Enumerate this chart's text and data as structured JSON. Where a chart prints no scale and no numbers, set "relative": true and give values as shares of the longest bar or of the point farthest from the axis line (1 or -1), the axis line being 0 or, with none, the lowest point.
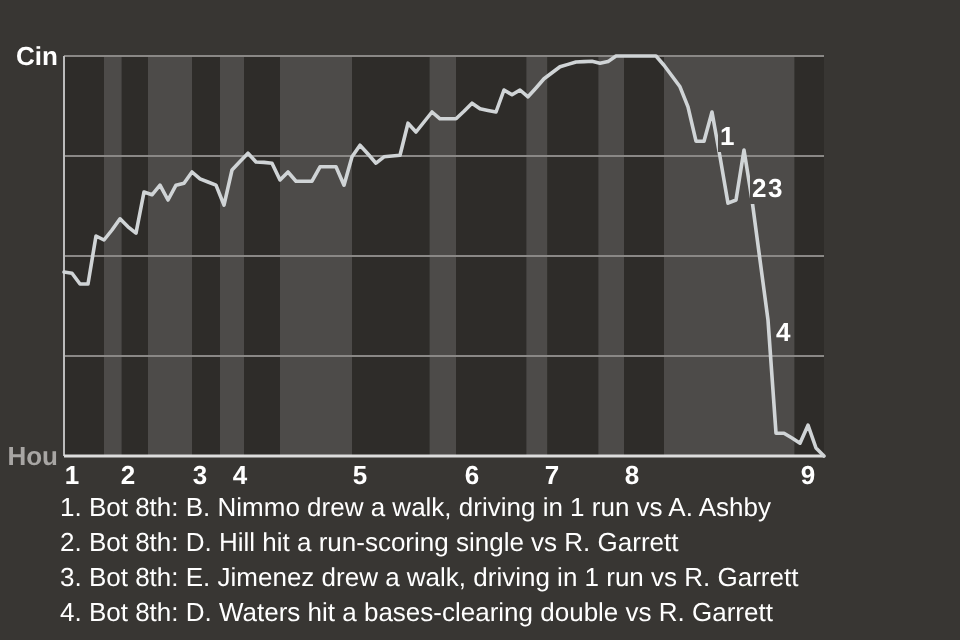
{
  "chart_data": {
    "type": "line",
    "relative": true,
    "categories": [
      null,
      "1",
      null,
      null,
      null,
      null,
      null,
      null,
      "2",
      null,
      null,
      null,
      null,
      null,
      null,
      null,
      null,
      "3",
      null,
      null,
      null,
      null,
      "4",
      null,
      null,
      null,
      null,
      null,
      null,
      null,
      null,
      null,
      null,
      null,
      null,
      null,
      null,
      "5",
      null,
      null,
      null,
      null,
      null,
      null,
      null,
      null,
      null,
      null,
      null,
      null,
      null,
      "6",
      null,
      null,
      null,
      null,
      null,
      null,
      null,
      null,
      null,
      "7",
      null,
      null,
      null,
      null,
      null,
      null,
      null,
      null,
      null,
      "8",
      null,
      null,
      null,
      null,
      null,
      null,
      null,
      null,
      null,
      null,
      null,
      null,
      null,
      null,
      null,
      null,
      null,
      null,
      null,
      null,
      null,
      "9",
      null,
      null
    ],
    "grid": "y",
    "marker": "none",
    "line_style": "solid",
    "series": [
      {
        "color": "#d0d4d6",
        "values": [
          0.46,
          0.457,
          0.43,
          0.43,
          0.55,
          0.54,
          0.565,
          0.593,
          0.573,
          0.557,
          0.66,
          0.653,
          0.677,
          0.64,
          0.677,
          0.682,
          0.71,
          0.693,
          0.685,
          0.677,
          0.627,
          0.715,
          0.736,
          0.757,
          0.735,
          0.734,
          0.732,
          0.69,
          0.71,
          0.687,
          0.687,
          0.687,
          0.723,
          0.723,
          0.723,
          0.677,
          0.748,
          0.777,
          0.755,
          0.732,
          0.748,
          0.75,
          0.752,
          0.832,
          0.81,
          0.835,
          0.86,
          0.843,
          0.843,
          0.843,
          0.862,
          0.882,
          0.868,
          0.864,
          0.86,
          0.915,
          0.903,
          0.915,
          0.898,
          0.92,
          0.943,
          0.958,
          0.973,
          0.979,
          0.985,
          0.986,
          0.987,
          0.982,
          0.986,
          1,
          1,
          1,
          1,
          1,
          1,
          0.977,
          0.95,
          0.923,
          0.873,
          0.787,
          0.787,
          0.86,
          0.748,
          0.632,
          0.64,
          0.765,
          0.64,
          0.49,
          0.34,
          0.057,
          0.057,
          0.045,
          0.032,
          0.077,
          0.02,
          0
        ]
      }
    ],
    "annotations": [
      "Cin",
      "Hou",
      {
        "text": "1",
        "y": 0.8
      },
      {
        "text": "2",
        "y": 0.67
      },
      {
        "text": "3",
        "y": 0.67
      },
      {
        "text": "4",
        "y": 0.31
      },
      "1. Bot 8th: B. Nimmo drew a walk, driving in 1 run vs A. Ashby",
      "2. Bot 8th: D. Hill hit a run-scoring single vs R. Garrett",
      "3. Bot 8th: E. Jimenez drew a walk, driving in 1 run vs R. Garrett",
      "4. Bot 8th: D. Waters hit a bases-clearing double vs R. Garrett"
    ]
  }
}
